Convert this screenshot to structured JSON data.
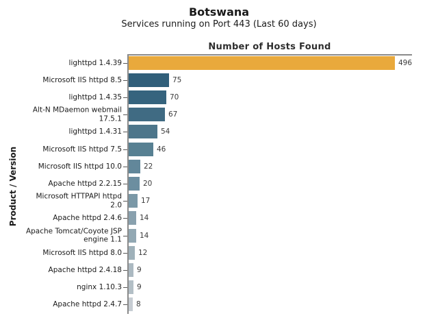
{
  "page": {
    "title": "Botswana",
    "subtitle": "Services running on Port 443 (Last 60 days)"
  },
  "chart_data": {
    "type": "bar",
    "orientation": "horizontal",
    "title": "Number of Hosts Found",
    "xlabel": "",
    "ylabel": "Product / Version",
    "xlim": [
      0,
      528
    ],
    "grid": false,
    "legend": false,
    "categories": [
      "lighttpd 1.4.39",
      "Microsoft IIS httpd 8.5",
      "lighttpd 1.4.35",
      "Alt-N MDaemon webmail\n17.5.1",
      "lighttpd 1.4.31",
      "Microsoft IIS httpd 7.5",
      "Microsoft IIS httpd 10.0",
      "Apache httpd 2.2.15",
      "Microsoft HTTPAPI httpd\n2.0",
      "Apache httpd 2.4.6",
      "Apache Tomcat/Coyote JSP\nengine 1.1",
      "Microsoft IIS httpd 8.0",
      "Apache httpd 2.4.18",
      "nginx 1.10.3",
      "Apache httpd 2.4.7"
    ],
    "values": [
      496,
      75,
      70,
      67,
      54,
      46,
      22,
      20,
      17,
      14,
      14,
      12,
      9,
      9,
      8
    ],
    "bar_colors": [
      "#E9A93C",
      "#315F7A",
      "#36647E",
      "#406B83",
      "#4D768B",
      "#578092",
      "#62879A",
      "#6C8EA0",
      "#7A98A7",
      "#89A1AE",
      "#92A8B3",
      "#9FB1BA",
      "#ABB9C1",
      "#B3BFC6",
      "#C7CDD3"
    ],
    "value_label_color": "#3a3a3a",
    "axis_color": "#8a8a8a"
  }
}
